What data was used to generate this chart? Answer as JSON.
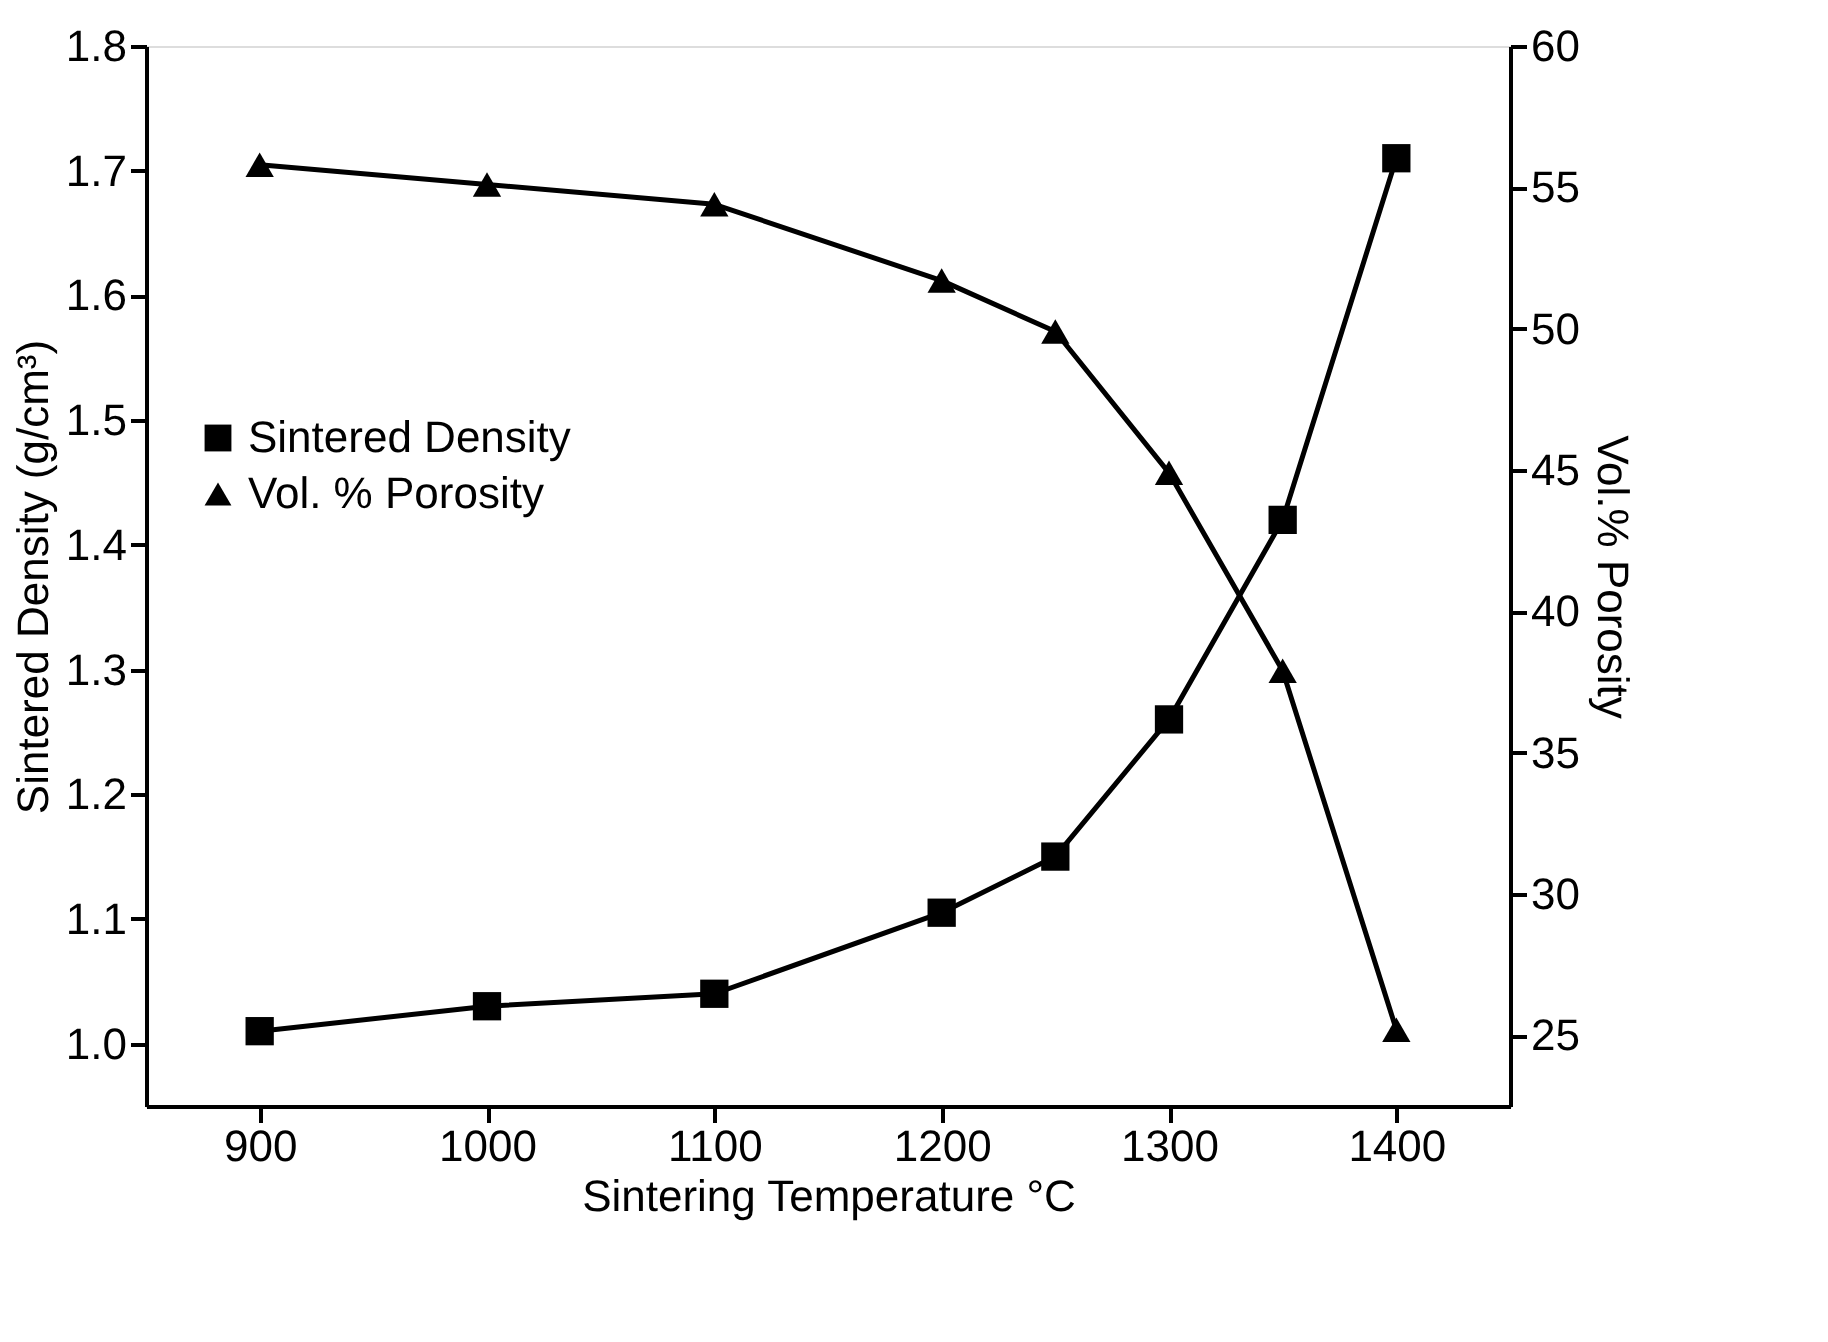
{
  "chart_data": {
    "type": "line",
    "xlabel": "Sintering Temperature °C",
    "ylabel": "Sintered Density (g/cm³)",
    "y2label": "Vol.% Porosity",
    "x": [
      900,
      1000,
      1100,
      1200,
      1250,
      1300,
      1350,
      1400
    ],
    "xlim": [
      850,
      1450
    ],
    "xticks": [
      900,
      1000,
      1100,
      1200,
      1300,
      1400
    ],
    "ylim": [
      0.95,
      1.8
    ],
    "yticks": [
      {
        "value": 1,
        "label": "1.0"
      },
      1.1,
      1.2,
      1.3,
      1.4,
      1.5,
      1.6,
      1.7,
      1.8
    ],
    "y2lim": [
      22.5,
      60
    ],
    "y2ticks": [
      25,
      30,
      35,
      40,
      45,
      50,
      55,
      60
    ],
    "series": [
      {
        "name": "Sintered Density",
        "color": "#000000",
        "marker": "square",
        "values": [
          1.01,
          1.03,
          1.04,
          1.105,
          1.15,
          1.26,
          1.42,
          1.71
        ]
      },
      {
        "name": "Vol. % Porosity",
        "color": "#000000",
        "marker": "triangle",
        "axis": "y2",
        "values": [
          55.8,
          55.1,
          54.4,
          51.7,
          49.9,
          44.9,
          37.9,
          25.2
        ]
      }
    ],
    "legend": "left",
    "grid": false,
    "line_style": "solid"
  }
}
